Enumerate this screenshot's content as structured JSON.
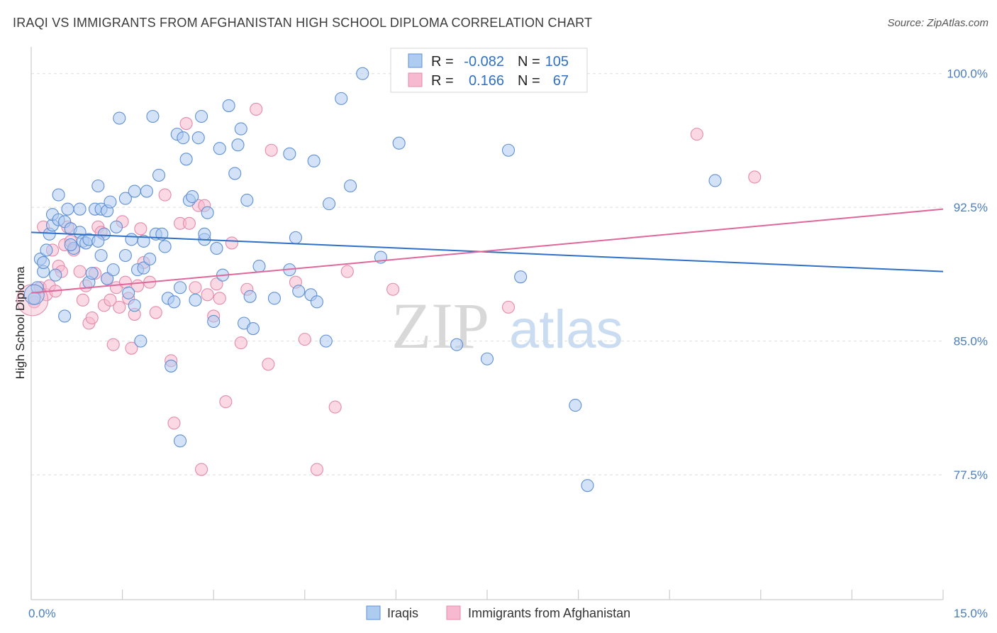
{
  "header": {
    "title": "IRAQI VS IMMIGRANTS FROM AFGHANISTAN HIGH SCHOOL DIPLOMA CORRELATION CHART",
    "source": "Source: ZipAtlas.com"
  },
  "watermark": {
    "zip": "ZIP",
    "atlas": "atlas"
  },
  "colors": {
    "iraqi_fill": "#aecbf0",
    "iraqi_stroke": "#5e90d4",
    "iraqi_line": "#2f70c8",
    "afghan_fill": "#f6b9cf",
    "afghan_stroke": "#e58aaa",
    "afghan_line": "#e0679a",
    "tick_text": "#4a7cc0",
    "grid": "#dddddd"
  },
  "chart_data": {
    "type": "scatter",
    "title": "IRAQI VS IMMIGRANTS FROM AFGHANISTAN HIGH SCHOOL DIPLOMA CORRELATION CHART",
    "xlabel": "",
    "ylabel": "High School Diploma",
    "xlim": [
      0,
      15
    ],
    "ylim": [
      70.5,
      101.5
    ],
    "x_tick_labels": [
      {
        "value": 0,
        "label": "0.0%"
      },
      {
        "value": 15,
        "label": "15.0%"
      }
    ],
    "y_tick_labels": [
      {
        "value": 100,
        "label": "100.0%"
      },
      {
        "value": 92.5,
        "label": "92.5%"
      },
      {
        "value": 85,
        "label": "85.0%"
      },
      {
        "value": 77.5,
        "label": "77.5%"
      }
    ],
    "legend_stats": [
      {
        "series": "Iraqis",
        "r_label": "R =",
        "r_value": "-0.082",
        "n_label": "N =",
        "n_value": "105"
      },
      {
        "series": "Immigrants from Afghanistan",
        "r_label": "R =",
        "r_value": "0.166",
        "n_label": "N =",
        "n_value": "67"
      }
    ],
    "legend": [
      "Iraqis",
      "Immigrants from Afghanistan"
    ],
    "series": [
      {
        "name": "Iraqis",
        "trend": {
          "x": [
            0,
            15
          ],
          "y": [
            91.1,
            88.9
          ]
        },
        "points": [
          [
            0.1,
            88.0
          ],
          [
            0.15,
            89.6
          ],
          [
            0.2,
            88.9
          ],
          [
            0.25,
            90.1
          ],
          [
            0.3,
            91.0
          ],
          [
            0.35,
            91.5
          ],
          [
            0.35,
            92.1
          ],
          [
            0.45,
            91.8
          ],
          [
            0.45,
            93.2
          ],
          [
            0.55,
            91.7
          ],
          [
            0.6,
            92.4
          ],
          [
            0.65,
            91.3
          ],
          [
            0.7,
            90.2
          ],
          [
            0.8,
            91.1
          ],
          [
            0.8,
            92.4
          ],
          [
            0.85,
            90.6
          ],
          [
            0.9,
            90.5
          ],
          [
            0.95,
            90.7
          ],
          [
            0.95,
            88.3
          ],
          [
            1.0,
            88.8
          ],
          [
            1.05,
            92.4
          ],
          [
            1.1,
            93.7
          ],
          [
            1.15,
            92.4
          ],
          [
            1.15,
            89.8
          ],
          [
            1.2,
            91.0
          ],
          [
            1.25,
            88.5
          ],
          [
            1.25,
            92.3
          ],
          [
            1.3,
            92.8
          ],
          [
            1.35,
            89.0
          ],
          [
            1.4,
            91.4
          ],
          [
            1.45,
            97.5
          ],
          [
            1.55,
            93.0
          ],
          [
            1.6,
            87.7
          ],
          [
            1.65,
            90.7
          ],
          [
            1.7,
            87.0
          ],
          [
            1.7,
            93.4
          ],
          [
            1.75,
            89.0
          ],
          [
            1.8,
            85.0
          ],
          [
            1.85,
            90.6
          ],
          [
            1.85,
            89.1
          ],
          [
            1.9,
            93.4
          ],
          [
            1.95,
            89.6
          ],
          [
            2.0,
            97.6
          ],
          [
            2.05,
            91.0
          ],
          [
            2.1,
            94.3
          ],
          [
            2.15,
            91.0
          ],
          [
            2.2,
            90.3
          ],
          [
            2.25,
            87.4
          ],
          [
            2.3,
            83.6
          ],
          [
            2.35,
            87.2
          ],
          [
            2.4,
            96.6
          ],
          [
            2.45,
            79.4
          ],
          [
            2.5,
            96.4
          ],
          [
            2.55,
            95.2
          ],
          [
            2.6,
            92.9
          ],
          [
            2.65,
            93.1
          ],
          [
            2.7,
            87.3
          ],
          [
            2.75,
            96.4
          ],
          [
            2.8,
            97.6
          ],
          [
            2.85,
            90.7
          ],
          [
            2.85,
            91.0
          ],
          [
            2.9,
            92.2
          ],
          [
            3.0,
            86.1
          ],
          [
            3.1,
            95.8
          ],
          [
            3.15,
            88.7
          ],
          [
            3.25,
            98.2
          ],
          [
            3.35,
            94.4
          ],
          [
            3.4,
            96.0
          ],
          [
            3.45,
            96.9
          ],
          [
            3.5,
            86.0
          ],
          [
            3.55,
            92.9
          ],
          [
            3.6,
            87.5
          ],
          [
            3.65,
            85.7
          ],
          [
            3.75,
            89.2
          ],
          [
            4.0,
            87.4
          ],
          [
            4.25,
            95.5
          ],
          [
            4.35,
            90.8
          ],
          [
            4.4,
            87.8
          ],
          [
            4.6,
            87.6
          ],
          [
            4.65,
            95.1
          ],
          [
            4.7,
            87.2
          ],
          [
            4.85,
            85.0
          ],
          [
            4.9,
            92.7
          ],
          [
            5.1,
            98.6
          ],
          [
            5.25,
            93.7
          ],
          [
            5.45,
            100.0
          ],
          [
            5.75,
            89.7
          ],
          [
            6.05,
            96.1
          ],
          [
            7.0,
            84.8
          ],
          [
            7.5,
            84.0
          ],
          [
            7.85,
            95.7
          ],
          [
            8.05,
            88.6
          ],
          [
            8.95,
            81.4
          ],
          [
            9.15,
            76.9
          ],
          [
            11.25,
            94.0
          ],
          [
            0.05,
            87.4
          ],
          [
            0.2,
            89.4
          ],
          [
            0.4,
            88.7
          ],
          [
            0.65,
            90.4
          ],
          [
            1.1,
            90.6
          ],
          [
            1.55,
            89.8
          ],
          [
            2.45,
            88.0
          ],
          [
            3.05,
            90.2
          ],
          [
            4.25,
            89.0
          ],
          [
            0.55,
            86.4
          ]
        ]
      },
      {
        "name": "Immigrants from Afghanistan",
        "trend": {
          "x": [
            0,
            15
          ],
          "y": [
            87.7,
            92.4
          ]
        },
        "points": [
          [
            0.05,
            87.2
          ],
          [
            0.15,
            88.0
          ],
          [
            0.2,
            91.4
          ],
          [
            0.25,
            87.6
          ],
          [
            0.3,
            88.1
          ],
          [
            0.35,
            90.1
          ],
          [
            0.4,
            87.8
          ],
          [
            0.45,
            89.2
          ],
          [
            0.5,
            88.9
          ],
          [
            0.55,
            90.4
          ],
          [
            0.6,
            91.4
          ],
          [
            0.65,
            90.6
          ],
          [
            0.7,
            90.1
          ],
          [
            0.8,
            88.9
          ],
          [
            0.85,
            87.3
          ],
          [
            0.9,
            88.1
          ],
          [
            0.95,
            86.0
          ],
          [
            1.0,
            86.3
          ],
          [
            1.05,
            88.8
          ],
          [
            1.1,
            91.4
          ],
          [
            1.15,
            91.1
          ],
          [
            1.2,
            87.0
          ],
          [
            1.25,
            88.5
          ],
          [
            1.3,
            87.3
          ],
          [
            1.35,
            84.8
          ],
          [
            1.4,
            88.0
          ],
          [
            1.45,
            86.9
          ],
          [
            1.5,
            91.7
          ],
          [
            1.55,
            88.3
          ],
          [
            1.6,
            87.4
          ],
          [
            1.65,
            84.6
          ],
          [
            1.7,
            86.5
          ],
          [
            1.75,
            88.1
          ],
          [
            1.8,
            91.3
          ],
          [
            1.85,
            89.4
          ],
          [
            1.95,
            88.3
          ],
          [
            2.05,
            86.6
          ],
          [
            2.2,
            93.2
          ],
          [
            2.3,
            83.9
          ],
          [
            2.35,
            80.4
          ],
          [
            2.45,
            91.6
          ],
          [
            2.55,
            97.2
          ],
          [
            2.6,
            91.6
          ],
          [
            2.7,
            88.0
          ],
          [
            2.75,
            92.6
          ],
          [
            2.8,
            77.8
          ],
          [
            2.85,
            92.6
          ],
          [
            2.9,
            87.6
          ],
          [
            3.0,
            86.4
          ],
          [
            3.05,
            88.2
          ],
          [
            3.1,
            87.4
          ],
          [
            3.2,
            81.6
          ],
          [
            3.3,
            90.5
          ],
          [
            3.45,
            84.9
          ],
          [
            3.55,
            87.9
          ],
          [
            3.7,
            98.0
          ],
          [
            3.9,
            83.7
          ],
          [
            3.95,
            95.7
          ],
          [
            4.35,
            88.3
          ],
          [
            4.5,
            85.1
          ],
          [
            4.7,
            77.8
          ],
          [
            5.0,
            81.3
          ],
          [
            5.2,
            88.9
          ],
          [
            5.95,
            87.9
          ],
          [
            7.85,
            86.9
          ],
          [
            10.95,
            96.6
          ],
          [
            11.9,
            94.2
          ]
        ]
      }
    ]
  }
}
